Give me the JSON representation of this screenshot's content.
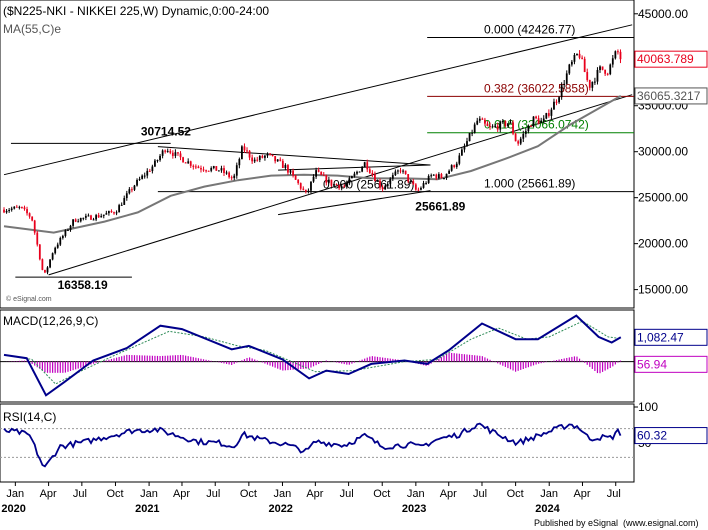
{
  "chart_data": [
    {
      "type": "candlestick",
      "title": "($N225-NKI - NIKKEI 225,W) Dynamic,0:00-24:00",
      "overlay_label": "MA(55,C)e",
      "watermark": "© eSignal.com",
      "ylim": [
        13000,
        46500
      ],
      "yticks": [
        15000,
        20000,
        25000,
        30000,
        35000,
        40000,
        45000
      ],
      "ytick_labels": [
        "15000.00",
        "20000.00",
        "25000.00",
        "30000.00",
        "35000.00",
        "40000.00",
        "45000.00"
      ],
      "last_price": {
        "value": 40063.789,
        "label": "40063.789",
        "color": "#e8001c"
      },
      "ma_value": {
        "value": 36065.3217,
        "label": "36065.3217",
        "color": "#555555"
      },
      "price_series": [
        [
          "2019-12-01",
          23700
        ],
        [
          "2020-01-15",
          23900
        ],
        [
          "2020-02-15",
          22800
        ],
        [
          "2020-03-19",
          16358
        ],
        [
          "2020-04-15",
          19400
        ],
        [
          "2020-06-10",
          22600
        ],
        [
          "2020-08-15",
          23000
        ],
        [
          "2020-10-01",
          23500
        ],
        [
          "2020-11-20",
          26300
        ],
        [
          "2021-01-15",
          28600
        ],
        [
          "2021-02-16",
          30467
        ],
        [
          "2021-03-15",
          29600
        ],
        [
          "2021-05-15",
          28300
        ],
        [
          "2021-07-15",
          28000
        ],
        [
          "2021-08-20",
          27000
        ],
        [
          "2021-09-14",
          30500
        ],
        [
          "2021-10-15",
          29000
        ],
        [
          "2021-11-20",
          29600
        ],
        [
          "2022-01-10",
          28300
        ],
        [
          "2022-03-08",
          25300
        ],
        [
          "2022-04-01",
          27800
        ],
        [
          "2022-05-15",
          26500
        ],
        [
          "2022-06-20",
          26200
        ],
        [
          "2022-08-15",
          28800
        ],
        [
          "2022-09-30",
          26000
        ],
        [
          "2022-11-20",
          28100
        ],
        [
          "2023-01-04",
          25661.89
        ],
        [
          "2023-02-15",
          27500
        ],
        [
          "2023-03-15",
          27200
        ],
        [
          "2023-04-25",
          29000
        ],
        [
          "2023-06-20",
          33500
        ],
        [
          "2023-07-20",
          32500
        ],
        [
          "2023-09-15",
          33200
        ],
        [
          "2023-10-05",
          30800
        ],
        [
          "2023-11-20",
          33600
        ],
        [
          "2023-12-15",
          33200
        ],
        [
          "2024-01-25",
          36000
        ],
        [
          "2024-02-26",
          39200
        ],
        [
          "2024-03-22",
          40800
        ],
        [
          "2024-04-19",
          37100
        ],
        [
          "2024-05-20",
          39000
        ],
        [
          "2024-06-10",
          38800
        ],
        [
          "2024-07-05",
          41000
        ],
        [
          "2024-07-15",
          40063.789
        ]
      ],
      "ma_series": [
        [
          "2019-12-01",
          21900
        ],
        [
          "2020-04-15",
          21200
        ],
        [
          "2020-09-01",
          22400
        ],
        [
          "2020-12-01",
          23400
        ],
        [
          "2021-03-01",
          25200
        ],
        [
          "2021-06-01",
          26200
        ],
        [
          "2021-09-01",
          26900
        ],
        [
          "2021-12-01",
          27400
        ],
        [
          "2022-03-01",
          27500
        ],
        [
          "2022-06-01",
          27400
        ],
        [
          "2022-09-01",
          27100
        ],
        [
          "2022-12-01",
          27100
        ],
        [
          "2023-03-01",
          27000
        ],
        [
          "2023-06-01",
          27900
        ],
        [
          "2023-09-01",
          29200
        ],
        [
          "2023-12-01",
          30600
        ],
        [
          "2024-03-01",
          33000
        ],
        [
          "2024-07-15",
          36065
        ]
      ],
      "trendlines": [
        {
          "from": [
            "2019-12-01",
            27500
          ],
          "to": [
            "2024-08-15",
            43800
          ]
        },
        {
          "from": [
            "2020-04-01",
            16600
          ],
          "to": [
            "2024-08-15",
            36200
          ]
        },
        {
          "from": [
            "2019-12-20",
            30900
          ],
          "to": [
            "2021-03-01",
            30900
          ]
        },
        {
          "from": [
            "2021-01-25",
            30550
          ],
          "to": [
            "2023-02-10",
            28550
          ]
        },
        {
          "from": [
            "2021-12-20",
            28000
          ],
          "to": [
            "2023-02-10",
            28550
          ]
        },
        {
          "from": [
            "2021-12-20",
            23150
          ],
          "to": [
            "2023-02-10",
            25761
          ]
        },
        {
          "from": [
            "2020-01-01",
            16358
          ],
          "to": [
            "2020-11-15",
            16358
          ]
        }
      ],
      "fibonacci_levels": [
        {
          "label": "0.000 (42426.77)",
          "value": 42426.77,
          "color": "#000000",
          "from": "2023-02-01"
        },
        {
          "label": "0.382 (36022.5858)",
          "value": 36022.5858,
          "color": "#8b0000",
          "from": "2023-02-01"
        },
        {
          "label": "0.618 (32066.0742)",
          "value": 32066.0742,
          "color": "#008000",
          "from": "2023-02-01"
        },
        {
          "label": "1.000 (25661.89)",
          "value": 25661.89,
          "color": "#000000",
          "from": "2021-01-25"
        }
      ],
      "fib_left_label": "0.000 (25661.89)",
      "annotations": [
        {
          "text": "30714.52",
          "x": "2020-12-15",
          "y": 31750
        },
        {
          "text": "25661.89",
          "x": "2023-01-05",
          "y": 23600
        },
        {
          "text": "16358.19",
          "x": "2020-05-01",
          "y": 15050
        }
      ]
    },
    {
      "type": "line",
      "title": "MACD(12,26,9,C)",
      "ylim": [
        -1800,
        2300
      ],
      "macd_value": {
        "value": 1082.47,
        "label": "1,082.47",
        "color": "#00008b"
      },
      "histogram_value": {
        "value": 56.94,
        "label": "56.94",
        "color": "#c000c0"
      },
      "macd": [
        [
          "2019-12-01",
          300
        ],
        [
          "2020-02-01",
          150
        ],
        [
          "2020-03-25",
          -1500
        ],
        [
          "2020-05-15",
          -900
        ],
        [
          "2020-08-01",
          50
        ],
        [
          "2020-11-01",
          600
        ],
        [
          "2021-02-01",
          1600
        ],
        [
          "2021-04-01",
          1450
        ],
        [
          "2021-08-15",
          550
        ],
        [
          "2021-10-01",
          700
        ],
        [
          "2022-01-01",
          100
        ],
        [
          "2022-03-15",
          -750
        ],
        [
          "2022-05-01",
          -400
        ],
        [
          "2022-07-01",
          -550
        ],
        [
          "2022-09-01",
          -100
        ],
        [
          "2022-12-01",
          50
        ],
        [
          "2023-02-01",
          -100
        ],
        [
          "2023-04-01",
          500
        ],
        [
          "2023-07-01",
          1700
        ],
        [
          "2023-10-01",
          1000
        ],
        [
          "2023-12-01",
          1000
        ],
        [
          "2024-03-15",
          2050
        ],
        [
          "2024-05-15",
          1100
        ],
        [
          "2024-06-20",
          850
        ],
        [
          "2024-07-15",
          1082.47
        ]
      ],
      "signal": [
        [
          "2019-12-01",
          300
        ],
        [
          "2020-02-15",
          100
        ],
        [
          "2020-04-20",
          -1000
        ],
        [
          "2020-07-01",
          -400
        ],
        [
          "2020-10-01",
          300
        ],
        [
          "2021-02-25",
          1350
        ],
        [
          "2021-06-01",
          1100
        ],
        [
          "2021-09-01",
          700
        ],
        [
          "2021-11-15",
          500
        ],
        [
          "2022-04-01",
          -450
        ],
        [
          "2022-07-15",
          -400
        ],
        [
          "2022-12-01",
          0
        ],
        [
          "2023-03-01",
          100
        ],
        [
          "2023-06-01",
          1000
        ],
        [
          "2023-08-15",
          1500
        ],
        [
          "2023-11-01",
          1000
        ],
        [
          "2024-01-01",
          1100
        ],
        [
          "2024-04-01",
          1800
        ],
        [
          "2024-06-10",
          1100
        ],
        [
          "2024-07-15",
          1025
        ]
      ],
      "histogram": [
        [
          "2019-12-01",
          0
        ],
        [
          "2020-02-01",
          50
        ],
        [
          "2020-03-25",
          -500
        ],
        [
          "2020-05-15",
          -500
        ],
        [
          "2020-08-01",
          -100
        ],
        [
          "2020-11-01",
          300
        ],
        [
          "2021-02-01",
          250
        ],
        [
          "2021-04-01",
          300
        ],
        [
          "2021-08-15",
          -150
        ],
        [
          "2021-10-01",
          200
        ],
        [
          "2022-01-01",
          -400
        ],
        [
          "2022-03-15",
          -300
        ],
        [
          "2022-05-01",
          50
        ],
        [
          "2022-07-01",
          -150
        ],
        [
          "2022-09-01",
          250
        ],
        [
          "2022-12-01",
          50
        ],
        [
          "2023-02-01",
          -200
        ],
        [
          "2023-04-01",
          400
        ],
        [
          "2023-07-01",
          250
        ],
        [
          "2023-10-01",
          -450
        ],
        [
          "2023-12-01",
          -100
        ],
        [
          "2024-03-15",
          250
        ],
        [
          "2024-05-15",
          -550
        ],
        [
          "2024-06-20",
          -250
        ],
        [
          "2024-07-15",
          57
        ]
      ]
    },
    {
      "type": "line",
      "title": "RSI(14,C)",
      "ylim": [
        0,
        100
      ],
      "yticks": [
        50,
        100
      ],
      "ytick_labels": [
        "50",
        "100"
      ],
      "reference_lines": [
        70,
        30
      ],
      "rsi_value": {
        "value": 60.32,
        "label": "60.32",
        "color": "#00008b"
      },
      "rsi": [
        [
          "2019-12-01",
          67
        ],
        [
          "2020-01-10",
          65
        ],
        [
          "2020-02-10",
          60
        ],
        [
          "2020-03-20",
          14
        ],
        [
          "2020-05-01",
          45
        ],
        [
          "2020-07-15",
          52
        ],
        [
          "2020-09-01",
          58
        ],
        [
          "2020-11-15",
          67
        ],
        [
          "2021-01-20",
          69
        ],
        [
          "2021-03-01",
          63
        ],
        [
          "2021-05-15",
          52
        ],
        [
          "2021-07-15",
          50
        ],
        [
          "2021-08-20",
          45
        ],
        [
          "2021-09-14",
          62
        ],
        [
          "2021-11-01",
          55
        ],
        [
          "2022-01-10",
          48
        ],
        [
          "2022-03-08",
          38
        ],
        [
          "2022-04-01",
          52
        ],
        [
          "2022-06-20",
          47
        ],
        [
          "2022-08-15",
          60
        ],
        [
          "2022-10-01",
          45
        ],
        [
          "2022-12-15",
          48
        ],
        [
          "2023-01-10",
          44
        ],
        [
          "2023-03-01",
          55
        ],
        [
          "2023-05-01",
          62
        ],
        [
          "2023-06-20",
          77
        ],
        [
          "2023-08-01",
          65
        ],
        [
          "2023-10-05",
          50
        ],
        [
          "2023-12-01",
          60
        ],
        [
          "2024-02-26",
          76
        ],
        [
          "2024-03-22",
          72
        ],
        [
          "2024-04-19",
          56
        ],
        [
          "2024-05-20",
          58
        ],
        [
          "2024-06-20",
          57
        ],
        [
          "2024-07-05",
          67
        ],
        [
          "2024-07-15",
          60.32
        ]
      ]
    }
  ],
  "x_axis": {
    "range": [
      "2019-11-20",
      "2024-08-20"
    ],
    "month_ticks": [
      {
        "date": "2020-01-01",
        "label": "Jan"
      },
      {
        "date": "2020-04-01",
        "label": "Apr"
      },
      {
        "date": "2020-07-01",
        "label": "Jul"
      },
      {
        "date": "2020-10-01",
        "label": "Oct"
      },
      {
        "date": "2021-01-01",
        "label": "Jan"
      },
      {
        "date": "2021-04-01",
        "label": "Apr"
      },
      {
        "date": "2021-07-01",
        "label": "Jul"
      },
      {
        "date": "2021-10-01",
        "label": "Oct"
      },
      {
        "date": "2022-01-01",
        "label": "Jan"
      },
      {
        "date": "2022-04-01",
        "label": "Apr"
      },
      {
        "date": "2022-07-01",
        "label": "Jul"
      },
      {
        "date": "2022-10-01",
        "label": "Oct"
      },
      {
        "date": "2023-01-01",
        "label": "Jan"
      },
      {
        "date": "2023-04-01",
        "label": "Apr"
      },
      {
        "date": "2023-07-01",
        "label": "Jul"
      },
      {
        "date": "2023-10-01",
        "label": "Oct"
      },
      {
        "date": "2024-01-01",
        "label": "Jan"
      },
      {
        "date": "2024-04-01",
        "label": "Apr"
      },
      {
        "date": "2024-07-01",
        "label": "Jul"
      }
    ],
    "year_labels": [
      {
        "date": "2020-01-01",
        "label": "2020"
      },
      {
        "date": "2021-01-01",
        "label": "2021"
      },
      {
        "date": "2022-01-01",
        "label": "2022"
      },
      {
        "date": "2023-01-01",
        "label": "2023"
      },
      {
        "date": "2024-01-01",
        "label": "2024"
      }
    ]
  },
  "footer": {
    "text": "Published by eSignal",
    "copyright": "(www.esignal.com)"
  },
  "colors": {
    "up_candle": "#000000",
    "down_candle": "#e8001c",
    "ma_line": "#777777",
    "macd_line": "#00008b",
    "signal_line": "#2e8b57",
    "histogram": "#c000c0",
    "rsi_line": "#00008b",
    "value_box_border": "#00008b"
  }
}
